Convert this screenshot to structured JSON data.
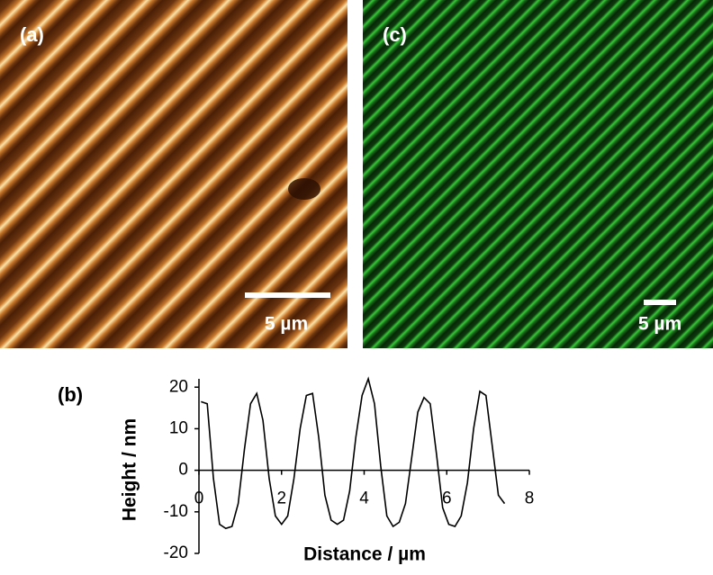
{
  "panels": {
    "a": {
      "label": "(a)",
      "scale_bar": "5 µm"
    },
    "c": {
      "label": "(c)",
      "scale_bar": "5 µm"
    }
  },
  "chart_data": {
    "type": "line",
    "label": "(b)",
    "x_label": "Distance / µm",
    "y_label": "Height / nm",
    "x": [
      0.05,
      0.2,
      0.35,
      0.5,
      0.65,
      0.8,
      0.95,
      1.1,
      1.25,
      1.4,
      1.55,
      1.7,
      1.85,
      2.0,
      2.15,
      2.3,
      2.45,
      2.6,
      2.75,
      2.9,
      3.05,
      3.2,
      3.35,
      3.5,
      3.65,
      3.8,
      3.95,
      4.1,
      4.25,
      4.4,
      4.55,
      4.7,
      4.85,
      5.0,
      5.15,
      5.3,
      5.45,
      5.6,
      5.75,
      5.9,
      6.05,
      6.2,
      6.35,
      6.5,
      6.65,
      6.8,
      6.95,
      7.1,
      7.25,
      7.4
    ],
    "values": [
      16.5,
      16,
      -2,
      -13,
      -14,
      -13.5,
      -8,
      5,
      16,
      18.5,
      12,
      -2,
      -11,
      -13,
      -11,
      -2,
      10,
      18,
      18.5,
      8,
      -6,
      -12,
      -13,
      -12,
      -5,
      8,
      18,
      22,
      16,
      1,
      -11,
      -13.5,
      -12.5,
      -8,
      3,
      14,
      17.5,
      16,
      4,
      -9,
      -13,
      -13.5,
      -11,
      -3,
      10,
      19,
      18,
      6,
      -6,
      -8
    ],
    "color": "#000000",
    "xlim": [
      0,
      8
    ],
    "ylim": [
      -20,
      22
    ],
    "xticks": [
      0,
      2,
      4,
      6,
      8
    ],
    "yticks": [
      -20,
      -10,
      0,
      10,
      20
    ]
  }
}
